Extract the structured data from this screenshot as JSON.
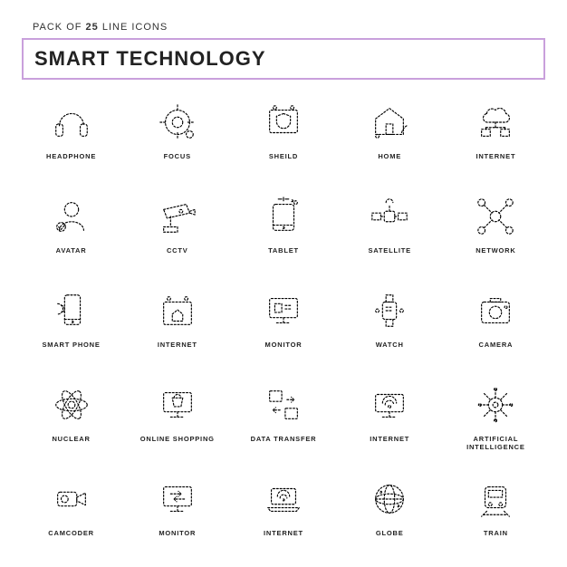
{
  "header": {
    "pack_prefix": "PACK OF",
    "count": "25",
    "pack_suffix": "LINE ICONS",
    "title": "SMART TECHNOLOGY",
    "border_color": "#c9a0dc"
  },
  "style": {
    "type": "infographic",
    "icon_stroke": "#000000",
    "icon_stroke_width": 1.2,
    "dash_pattern": "2 2",
    "background_color": "#ffffff",
    "label_fontsize": 7.5,
    "title_fontsize": 22,
    "grid_cols": 5,
    "grid_rows": 5
  },
  "icons": [
    {
      "id": "headphone",
      "label": "HEADPHONE"
    },
    {
      "id": "focus",
      "label": "FOCUS"
    },
    {
      "id": "sheild",
      "label": "SHEILD"
    },
    {
      "id": "home",
      "label": "HOME"
    },
    {
      "id": "internet-cloud",
      "label": "INTERNET"
    },
    {
      "id": "avatar",
      "label": "AVATAR"
    },
    {
      "id": "cctv",
      "label": "CCTV"
    },
    {
      "id": "tablet",
      "label": "TABLET"
    },
    {
      "id": "satellite",
      "label": "SATELLITE"
    },
    {
      "id": "network",
      "label": "NETWORK"
    },
    {
      "id": "smart-phone",
      "label": "SMART PHONE"
    },
    {
      "id": "internet-house",
      "label": "INTERNET"
    },
    {
      "id": "monitor",
      "label": "MONITOR"
    },
    {
      "id": "watch",
      "label": "WATCH"
    },
    {
      "id": "camera",
      "label": "CAMERA"
    },
    {
      "id": "nuclear",
      "label": "NUCLEAR"
    },
    {
      "id": "online-shopping",
      "label": "ONLINE SHOPPING"
    },
    {
      "id": "data-transfer",
      "label": "DATA TRANSFER"
    },
    {
      "id": "internet-monitor",
      "label": "INTERNET"
    },
    {
      "id": "ai",
      "label": "ARTIFICIAL INTELLIGENCE"
    },
    {
      "id": "camcoder",
      "label": "CAMCODER"
    },
    {
      "id": "monitor-arrows",
      "label": "MONITOR"
    },
    {
      "id": "internet-laptop",
      "label": "INTERNET"
    },
    {
      "id": "globe",
      "label": "GLOBE"
    },
    {
      "id": "train",
      "label": "TRAIN"
    }
  ]
}
